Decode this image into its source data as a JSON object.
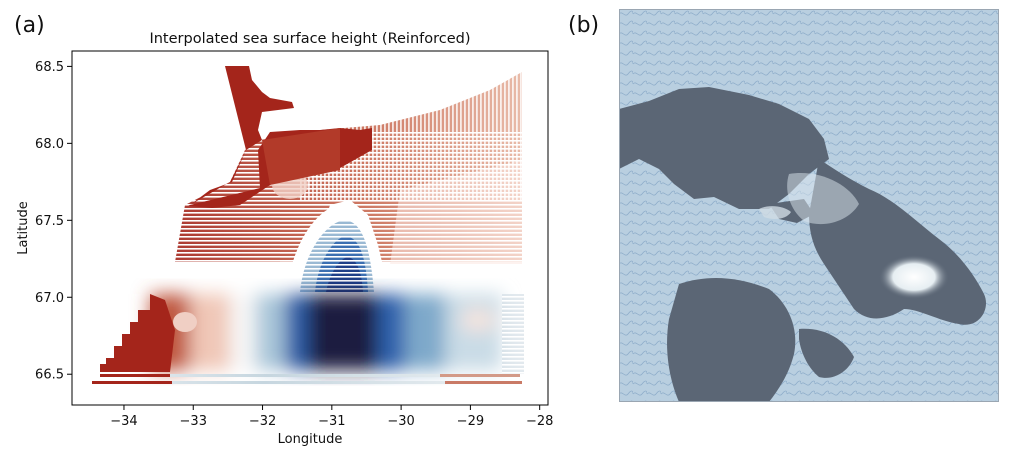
{
  "panels": {
    "a_label": "(a)",
    "b_label": "(b)"
  },
  "chart_data": {
    "type": "heatmap",
    "title": "Interpolated sea surface height (Reinforced)",
    "xlabel": "Longitude",
    "ylabel": "Latitude",
    "xlim": [
      -34.75,
      -27.88
    ],
    "ylim": [
      66.3,
      68.6
    ],
    "xticks": [
      -34,
      -33,
      -32,
      -31,
      -30,
      -29,
      -28
    ],
    "xtick_labels": [
      "−34",
      "−33",
      "−32",
      "−31",
      "−30",
      "−29",
      "−28"
    ],
    "yticks": [
      66.5,
      67.0,
      67.5,
      68.0,
      68.5
    ],
    "ytick_labels": [
      "66.5",
      "67.0",
      "67.5",
      "68.0",
      "68.5"
    ],
    "grid": false,
    "colormap": "diverging red-white-blue",
    "colors": {
      "positive": "#a4251b",
      "neutral": "#ffffff",
      "negative": "#1a1d3f"
    }
  }
}
